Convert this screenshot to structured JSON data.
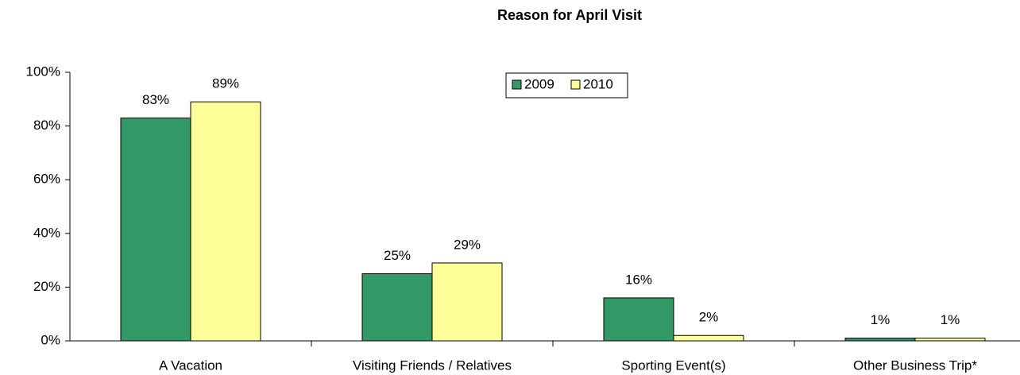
{
  "chart_data": {
    "type": "bar",
    "title": "Reason for April Visit",
    "categories": [
      "A Vacation",
      "Visiting Friends / Relatives",
      "Sporting Event(s)",
      "Other Business Trip*"
    ],
    "series": [
      {
        "name": "2009",
        "color": "#339966",
        "values": [
          83,
          25,
          16,
          1
        ],
        "value_labels": [
          "83%",
          "25%",
          "16%",
          "1%"
        ]
      },
      {
        "name": "2010",
        "color": "#ffff99",
        "values": [
          89,
          29,
          2,
          1
        ],
        "value_labels": [
          "89%",
          "29%",
          "2%",
          "1%"
        ]
      }
    ],
    "ylim": [
      0,
      100
    ],
    "yticks": [
      {
        "value": 0,
        "label": "0%"
      },
      {
        "value": 20,
        "label": "20%"
      },
      {
        "value": 40,
        "label": "40%"
      },
      {
        "value": 60,
        "label": "60%"
      },
      {
        "value": 80,
        "label": "80%"
      },
      {
        "value": 100,
        "label": "100%"
      }
    ],
    "grid": false,
    "legend": "top"
  }
}
